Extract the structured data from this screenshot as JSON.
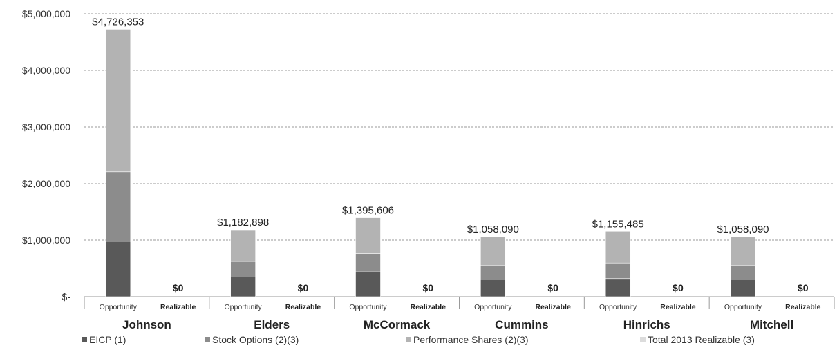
{
  "chart_data": {
    "type": "bar",
    "stacked": true,
    "ylim": [
      0,
      5000000
    ],
    "y_ticks": [
      {
        "value": 0,
        "label": "$-"
      },
      {
        "value": 1000000,
        "label": "$1,000,000"
      },
      {
        "value": 2000000,
        "label": "$2,000,000"
      },
      {
        "value": 3000000,
        "label": "$3,000,000"
      },
      {
        "value": 4000000,
        "label": "$4,000,000"
      },
      {
        "value": 5000000,
        "label": "$5,000,000"
      }
    ],
    "grid": true,
    "legend_position": "bottom",
    "sub_categories": [
      "Opportunity",
      "Realizable"
    ],
    "groups": [
      {
        "name": "Johnson",
        "opportunity": [
          970000,
          1240000,
          2516353
        ],
        "opportunity_total_label": "$4,726,353",
        "realizable": 0,
        "realizable_label": "$0"
      },
      {
        "name": "Elders",
        "opportunity": [
          350000,
          270000,
          562898
        ],
        "opportunity_total_label": "$1,182,898",
        "realizable": 0,
        "realizable_label": "$0"
      },
      {
        "name": "McCormack",
        "opportunity": [
          450000,
          310000,
          635606
        ],
        "opportunity_total_label": "$1,395,606",
        "realizable": 0,
        "realizable_label": "$0"
      },
      {
        "name": "Cummins",
        "opportunity": [
          300000,
          250000,
          508090
        ],
        "opportunity_total_label": "$1,058,090",
        "realizable": 0,
        "realizable_label": "$0"
      },
      {
        "name": "Hinrichs",
        "opportunity": [
          320000,
          275000,
          560485
        ],
        "opportunity_total_label": "$1,155,485",
        "realizable": 0,
        "realizable_label": "$0"
      },
      {
        "name": "Mitchell",
        "opportunity": [
          300000,
          250000,
          508090
        ],
        "opportunity_total_label": "$1,058,090",
        "realizable": 0,
        "realizable_label": "$0"
      }
    ],
    "series": [
      {
        "name": "EICP (1)",
        "color": "#595959"
      },
      {
        "name": "Stock Options (2)(3)",
        "color": "#8c8c8c"
      },
      {
        "name": "Performance Shares (2)(3)",
        "color": "#b3b3b3"
      },
      {
        "name": "Total 2013 Realizable (3)",
        "color": "#dcdcdc"
      }
    ]
  }
}
